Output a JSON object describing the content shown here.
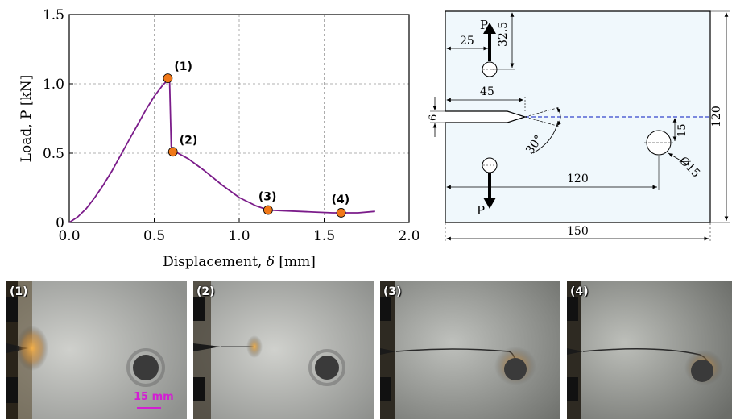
{
  "chart_data": {
    "type": "line",
    "xlabel_text": "Displacement, ",
    "xlabel_sym": "δ",
    "xlabel_unit": " [mm]",
    "ylabel": "Load, P [kN]",
    "xlim": [
      0.0,
      2.0
    ],
    "ylim": [
      0,
      1.5
    ],
    "xticks": [
      "0.0",
      "0.5",
      "1.0",
      "1.5",
      "2.0"
    ],
    "yticks": [
      "0",
      "0.5",
      "1.0",
      "1.5"
    ],
    "xtick_values": [
      0,
      0.5,
      1.0,
      1.5,
      2.0
    ],
    "ytick_values": [
      0,
      0.5,
      1.0,
      1.5
    ],
    "grid": true,
    "series": [
      {
        "color": "#7b1c8a",
        "x": [
          0.0,
          0.05,
          0.1,
          0.15,
          0.2,
          0.25,
          0.3,
          0.35,
          0.4,
          0.45,
          0.5,
          0.55,
          0.59,
          0.6,
          0.61,
          0.64,
          0.7,
          0.8,
          0.9,
          1.0,
          1.1,
          1.17,
          1.25,
          1.35,
          1.45,
          1.55,
          1.6,
          1.7,
          1.8
        ],
        "y": [
          0.0,
          0.04,
          0.1,
          0.18,
          0.27,
          0.37,
          0.48,
          0.59,
          0.7,
          0.81,
          0.91,
          0.99,
          1.04,
          0.55,
          0.51,
          0.5,
          0.46,
          0.37,
          0.27,
          0.18,
          0.12,
          0.09,
          0.085,
          0.08,
          0.075,
          0.07,
          0.07,
          0.07,
          0.08
        ]
      }
    ],
    "markers": [
      {
        "label": "(1)",
        "x": 0.58,
        "y": 1.04
      },
      {
        "label": "(2)",
        "x": 0.61,
        "y": 0.51
      },
      {
        "label": "(3)",
        "x": 1.17,
        "y": 0.09
      },
      {
        "label": "(4)",
        "x": 1.6,
        "y": 0.07
      }
    ],
    "marker_color": "#f07818"
  },
  "schematic": {
    "load_top": "P",
    "load_bottom": "P",
    "dim_25": "25",
    "dim_32_5": "32.5",
    "dim_45": "45",
    "dim_6": "6",
    "dim_30deg": "30°",
    "dim_15": "15",
    "dim_hole": "Ø15",
    "dim_120_h": "120",
    "dim_120_v": "120",
    "dim_150": "150",
    "crack_line_color": "#3344cc",
    "plate_fill": "#f0f8fc"
  },
  "photos": [
    {
      "label": "(1)"
    },
    {
      "label": "(2)"
    },
    {
      "label": "(3)"
    },
    {
      "label": "(4)"
    }
  ],
  "scale": {
    "label": "15 mm",
    "color": "#d21ed2"
  }
}
